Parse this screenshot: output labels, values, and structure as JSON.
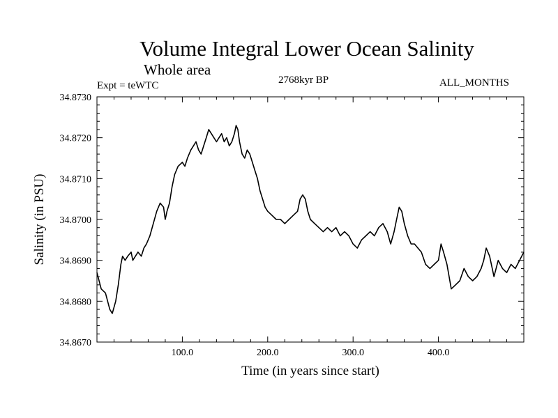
{
  "header": {
    "title": "Volume Integral Lower Ocean Salinity",
    "subtitle": "Whole area",
    "expt": "Expt = teWTC",
    "period": "2768kyr BP",
    "months": "ALL_MONTHS"
  },
  "chart_data": {
    "type": "line",
    "title": "Volume Integral Lower Ocean Salinity",
    "xlabel": "Time (in years since start)",
    "ylabel": "Salinity (in PSU)",
    "xlim": [
      0,
      500
    ],
    "ylim": [
      34.867,
      34.873
    ],
    "xticks": [
      100,
      200,
      300,
      400
    ],
    "xtick_labels": [
      "100.0",
      "200.0",
      "300.0",
      "400.0"
    ],
    "yticks": [
      34.867,
      34.868,
      34.869,
      34.87,
      34.871,
      34.872,
      34.873
    ],
    "ytick_labels": [
      "34.8670",
      "34.8680",
      "34.8690",
      "34.8700",
      "34.8710",
      "34.8720",
      "34.8730"
    ],
    "grid": false,
    "series": [
      {
        "name": "Salinity",
        "x": [
          0,
          5,
          10,
          15,
          18,
          22,
          25,
          28,
          30,
          33,
          36,
          40,
          42,
          45,
          48,
          52,
          55,
          58,
          62,
          66,
          70,
          74,
          78,
          80,
          82,
          85,
          88,
          91,
          95,
          100,
          103,
          106,
          110,
          113,
          116,
          119,
          122,
          125,
          128,
          131,
          134,
          137,
          140,
          143,
          146,
          149,
          152,
          155,
          158,
          161,
          163,
          165,
          167,
          170,
          173,
          176,
          179,
          182,
          185,
          188,
          191,
          194,
          197,
          200,
          205,
          210,
          215,
          220,
          225,
          230,
          235,
          238,
          241,
          244,
          247,
          250,
          255,
          260,
          265,
          270,
          275,
          280,
          285,
          290,
          295,
          300,
          305,
          310,
          315,
          320,
          325,
          330,
          335,
          340,
          344,
          348,
          351,
          354,
          357,
          360,
          364,
          368,
          372,
          376,
          380,
          385,
          390,
          395,
          400,
          403,
          406,
          410,
          415,
          420,
          425,
          430,
          435,
          440,
          445,
          450,
          453,
          456,
          460,
          465,
          470,
          475,
          480,
          485,
          490,
          495,
          500
        ],
        "values": [
          34.8687,
          34.8683,
          34.8682,
          34.8678,
          34.8677,
          34.868,
          34.8684,
          34.8689,
          34.8691,
          34.869,
          34.8691,
          34.8692,
          34.869,
          34.8691,
          34.8692,
          34.8691,
          34.8693,
          34.8694,
          34.8696,
          34.8699,
          34.8702,
          34.8704,
          34.8703,
          34.87,
          34.8702,
          34.8704,
          34.8708,
          34.8711,
          34.8713,
          34.8714,
          34.8713,
          34.8715,
          34.8717,
          34.8718,
          34.8719,
          34.8717,
          34.8716,
          34.8718,
          34.872,
          34.8722,
          34.8721,
          34.872,
          34.8719,
          34.872,
          34.8721,
          34.8719,
          34.872,
          34.8718,
          34.8719,
          34.8721,
          34.8723,
          34.8722,
          34.8719,
          34.8716,
          34.8715,
          34.8717,
          34.8716,
          34.8714,
          34.8712,
          34.871,
          34.8707,
          34.8705,
          34.8703,
          34.8702,
          34.8701,
          34.87,
          34.87,
          34.8699,
          34.87,
          34.8701,
          34.8702,
          34.8705,
          34.8706,
          34.8705,
          34.8702,
          34.87,
          34.8699,
          34.8698,
          34.8697,
          34.8698,
          34.8697,
          34.8698,
          34.8696,
          34.8697,
          34.8696,
          34.8694,
          34.8693,
          34.8695,
          34.8696,
          34.8697,
          34.8696,
          34.8698,
          34.8699,
          34.8697,
          34.8694,
          34.8697,
          34.87,
          34.8703,
          34.8702,
          34.8699,
          34.8696,
          34.8694,
          34.8694,
          34.8693,
          34.8692,
          34.8689,
          34.8688,
          34.8689,
          34.869,
          34.8694,
          34.8692,
          34.8689,
          34.8683,
          34.8684,
          34.8685,
          34.8688,
          34.8686,
          34.8685,
          34.8686,
          34.8688,
          34.869,
          34.8693,
          34.8691,
          34.8686,
          34.869,
          34.8688,
          34.8687,
          34.8689,
          34.8688,
          34.869,
          34.8692
        ]
      }
    ]
  }
}
